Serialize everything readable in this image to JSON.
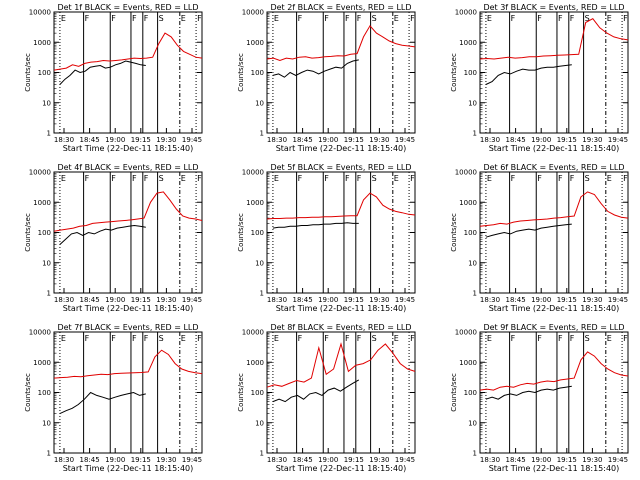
{
  "figure": {
    "xlabel": "Start Time (22-Dec-11 18:15:40)",
    "ylabel": "Counts/sec",
    "colors": {
      "events": "#000000",
      "lld": "#e00000",
      "axis": "#000000"
    }
  },
  "chart_data": [
    {
      "type": "line",
      "title": "Det 1f BLACK = Events, RED = LLD",
      "x_tick_labels": [
        "18:30",
        "18:45",
        "19:00",
        "19:15",
        "19:30",
        "19:45"
      ],
      "y_tick_labels": [
        "1",
        "10",
        "100",
        "1000",
        "10000"
      ],
      "ylim": [
        1,
        10000
      ],
      "log_y": true,
      "markers": [
        "E",
        "F",
        "F",
        "F",
        "F",
        "S",
        "E",
        "F"
      ],
      "series": [
        {
          "key": "events",
          "values": [
            40,
            60,
            80,
            120,
            100,
            110,
            150,
            160,
            170,
            140,
            150,
            180,
            200,
            240,
            220,
            200,
            180,
            170
          ]
        },
        {
          "key": "lld",
          "values": [
            120,
            130,
            140,
            180,
            160,
            200,
            220,
            230,
            250,
            240,
            250,
            260,
            280,
            300,
            290,
            300,
            320,
            900,
            2000,
            1500,
            800,
            500,
            400,
            320,
            300
          ]
        }
      ]
    },
    {
      "type": "line",
      "title": "Det 2f BLACK = Events, RED = LLD",
      "x_tick_labels": [
        "18:30",
        "18:45",
        "19:00",
        "19:15",
        "19:30",
        "19:45"
      ],
      "y_tick_labels": [
        "1",
        "10",
        "100",
        "1000",
        "10000"
      ],
      "ylim": [
        1,
        10000
      ],
      "log_y": true,
      "markers": [
        "E",
        "F",
        "F",
        "F",
        "F",
        "S",
        "E",
        "F"
      ],
      "series": [
        {
          "key": "events",
          "values": [
            80,
            90,
            70,
            100,
            80,
            100,
            120,
            110,
            90,
            110,
            130,
            150,
            140,
            200,
            240,
            260
          ]
        },
        {
          "key": "lld",
          "values": [
            280,
            300,
            250,
            300,
            280,
            320,
            330,
            300,
            310,
            330,
            340,
            360,
            350,
            400,
            420,
            1500,
            3500,
            2000,
            1500,
            1100,
            900,
            800,
            750,
            700
          ]
        }
      ]
    },
    {
      "type": "line",
      "title": "Det 3f BLACK = Events, RED = LLD",
      "x_tick_labels": [
        "18:30",
        "18:45",
        "19:00",
        "19:15",
        "19:30",
        "19:45"
      ],
      "y_tick_labels": [
        "1",
        "10",
        "100",
        "1000",
        "10000"
      ],
      "ylim": [
        1,
        10000
      ],
      "log_y": true,
      "markers": [
        "E",
        "F",
        "F",
        "F",
        "F",
        "S",
        "E",
        "F"
      ],
      "series": [
        {
          "key": "events",
          "values": [
            40,
            50,
            80,
            100,
            90,
            110,
            130,
            120,
            120,
            140,
            150,
            150,
            160,
            170,
            180
          ]
        },
        {
          "key": "lld",
          "values": [
            280,
            290,
            280,
            300,
            320,
            300,
            310,
            330,
            330,
            350,
            360,
            370,
            380,
            390,
            400,
            4500,
            6000,
            3000,
            2000,
            1500,
            1300,
            1200
          ]
        }
      ]
    },
    {
      "type": "line",
      "title": "Det 4f BLACK = Events, RED = LLD",
      "x_tick_labels": [
        "18:30",
        "18:45",
        "19:00",
        "19:15",
        "19:30",
        "19:45"
      ],
      "y_tick_labels": [
        "1",
        "10",
        "100",
        "1000",
        "10000"
      ],
      "ylim": [
        1,
        10000
      ],
      "log_y": true,
      "markers": [
        "E",
        "F",
        "F",
        "F",
        "F",
        "S",
        "E",
        "F"
      ],
      "series": [
        {
          "key": "events",
          "values": [
            40,
            60,
            90,
            100,
            80,
            100,
            90,
            110,
            130,
            120,
            140,
            150,
            160,
            170,
            160,
            150
          ]
        },
        {
          "key": "lld",
          "values": [
            110,
            120,
            130,
            140,
            160,
            170,
            200,
            210,
            220,
            230,
            240,
            250,
            260,
            280,
            300,
            1000,
            2000,
            2200,
            1200,
            600,
            350,
            300,
            280,
            250
          ]
        }
      ]
    },
    {
      "type": "line",
      "title": "Det 5f BLACK = Events, RED = LLD",
      "x_tick_labels": [
        "18:30",
        "18:45",
        "19:00",
        "19:15",
        "19:30",
        "19:45"
      ],
      "y_tick_labels": [
        "1",
        "10",
        "100",
        "1000",
        "10000"
      ],
      "ylim": [
        1,
        10000
      ],
      "log_y": true,
      "markers": [
        "E",
        "F",
        "F",
        "F",
        "F",
        "S",
        "E",
        "F"
      ],
      "series": [
        {
          "key": "events",
          "values": [
            140,
            150,
            150,
            160,
            160,
            170,
            170,
            180,
            180,
            190,
            190,
            200,
            200,
            210,
            200,
            200
          ]
        },
        {
          "key": "lld",
          "values": [
            280,
            290,
            290,
            300,
            300,
            310,
            310,
            320,
            320,
            330,
            330,
            340,
            350,
            360,
            360,
            1200,
            2000,
            1500,
            800,
            600,
            500,
            450,
            400,
            380
          ]
        }
      ]
    },
    {
      "type": "line",
      "title": "Det 6f BLACK = Events, RED = LLD",
      "x_tick_labels": [
        "18:30",
        "18:45",
        "19:00",
        "19:15",
        "19:30",
        "19:45"
      ],
      "y_tick_labels": [
        "1",
        "10",
        "100",
        "1000",
        "10000"
      ],
      "ylim": [
        1,
        10000
      ],
      "log_y": true,
      "markers": [
        "E",
        "F",
        "F",
        "F",
        "F",
        "S",
        "E",
        "F"
      ],
      "series": [
        {
          "key": "events",
          "values": [
            70,
            80,
            90,
            100,
            90,
            110,
            120,
            130,
            120,
            140,
            150,
            160,
            170,
            180,
            190
          ]
        },
        {
          "key": "lld",
          "values": [
            160,
            170,
            180,
            200,
            190,
            220,
            240,
            250,
            260,
            270,
            280,
            300,
            310,
            330,
            350,
            1500,
            2200,
            1800,
            900,
            500,
            380,
            320,
            300
          ]
        }
      ]
    },
    {
      "type": "line",
      "title": "Det 7f BLACK = Events, RED = LLD",
      "x_tick_labels": [
        "18:30",
        "18:45",
        "19:00",
        "19:15",
        "19:30",
        "19:45"
      ],
      "y_tick_labels": [
        "1",
        "10",
        "100",
        "1000",
        "10000"
      ],
      "ylim": [
        1,
        10000
      ],
      "log_y": true,
      "markers": [
        "E",
        "F",
        "F",
        "F",
        "F",
        "S",
        "E",
        "F"
      ],
      "series": [
        {
          "key": "events",
          "values": [
            20,
            25,
            30,
            40,
            60,
            100,
            80,
            70,
            60,
            70,
            80,
            90,
            100,
            80,
            90
          ]
        },
        {
          "key": "lld",
          "values": [
            300,
            310,
            320,
            340,
            330,
            360,
            380,
            400,
            390,
            420,
            430,
            440,
            450,
            460,
            480,
            1500,
            2500,
            1800,
            900,
            600,
            500,
            450,
            420
          ]
        }
      ]
    },
    {
      "type": "line",
      "title": "Det 8f BLACK = Events, RED = LLD",
      "x_tick_labels": [
        "18:30",
        "18:45",
        "19:00",
        "19:15",
        "19:30",
        "19:45"
      ],
      "y_tick_labels": [
        "1",
        "10",
        "100",
        "1000",
        "10000"
      ],
      "ylim": [
        1,
        10000
      ],
      "log_y": true,
      "markers": [
        "E",
        "F",
        "F",
        "F",
        "F",
        "S",
        "E",
        "F"
      ],
      "series": [
        {
          "key": "events",
          "values": [
            50,
            60,
            50,
            70,
            80,
            60,
            90,
            100,
            80,
            120,
            140,
            110,
            150,
            200,
            260
          ]
        },
        {
          "key": "lld",
          "values": [
            150,
            180,
            160,
            200,
            250,
            220,
            300,
            3000,
            400,
            600,
            4000,
            500,
            800,
            900,
            1200,
            2500,
            4000,
            2000,
            900,
            600,
            500
          ]
        }
      ]
    },
    {
      "type": "line",
      "title": "Det 9f BLACK = Events, RED = LLD",
      "x_tick_labels": [
        "18:30",
        "18:45",
        "19:00",
        "19:15",
        "19:30",
        "19:45"
      ],
      "y_tick_labels": [
        "1",
        "10",
        "100",
        "1000",
        "10000"
      ],
      "ylim": [
        1,
        10000
      ],
      "log_y": true,
      "markers": [
        "E",
        "F",
        "F",
        "F",
        "F",
        "S",
        "E",
        "F"
      ],
      "series": [
        {
          "key": "events",
          "values": [
            60,
            70,
            60,
            80,
            90,
            80,
            100,
            110,
            100,
            120,
            130,
            120,
            140,
            150,
            160
          ]
        },
        {
          "key": "lld",
          "values": [
            120,
            130,
            120,
            150,
            160,
            150,
            180,
            200,
            190,
            220,
            240,
            230,
            260,
            280,
            300,
            1200,
            2200,
            1600,
            900,
            600,
            450,
            380,
            350
          ]
        }
      ]
    }
  ]
}
